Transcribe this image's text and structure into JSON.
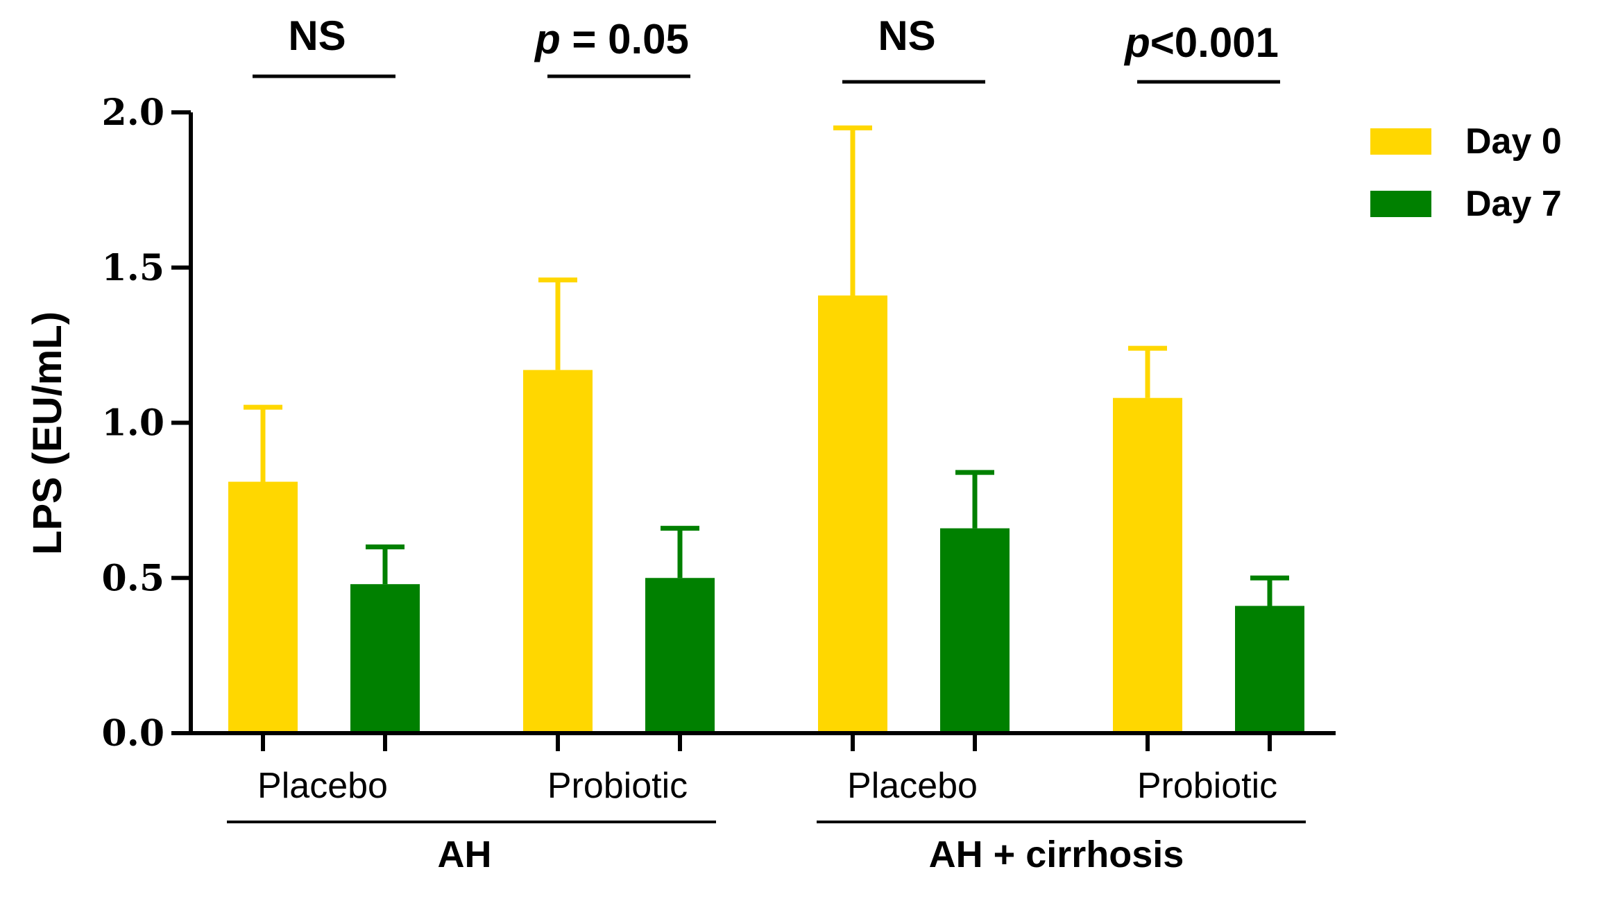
{
  "chart_data": {
    "type": "bar",
    "title": "",
    "xlabel": "",
    "ylabel": "LPS (EU/mL)",
    "ylim": [
      0,
      2.0
    ],
    "yticks": [
      "0.0",
      "0.5",
      "1.0",
      "1.5",
      "2.0"
    ],
    "grid": false,
    "legend_position": "top-right",
    "categories": [
      "Placebo",
      "Probiotic",
      "Placebo",
      "Probiotic"
    ],
    "groups": [
      {
        "label": "AH",
        "categories": [
          0,
          1
        ]
      },
      {
        "label": "AH + cirrhosis",
        "categories": [
          2,
          3
        ]
      }
    ],
    "series": [
      {
        "name": "Day 0",
        "color": "#FFD700",
        "values": [
          0.81,
          1.17,
          1.41,
          1.08
        ],
        "errors": [
          0.24,
          0.29,
          0.54,
          0.16
        ]
      },
      {
        "name": "Day 7",
        "color": "#008000",
        "values": [
          0.48,
          0.5,
          0.66,
          0.41
        ],
        "errors": [
          0.12,
          0.16,
          0.18,
          0.09
        ]
      }
    ],
    "annotations": [
      {
        "category": 0,
        "prefix": "",
        "text": "NS"
      },
      {
        "category": 1,
        "prefix": "p",
        "text": " = 0.05"
      },
      {
        "category": 2,
        "prefix": "",
        "text": "NS"
      },
      {
        "category": 3,
        "prefix": "p",
        "text": "<0.001"
      }
    ]
  }
}
